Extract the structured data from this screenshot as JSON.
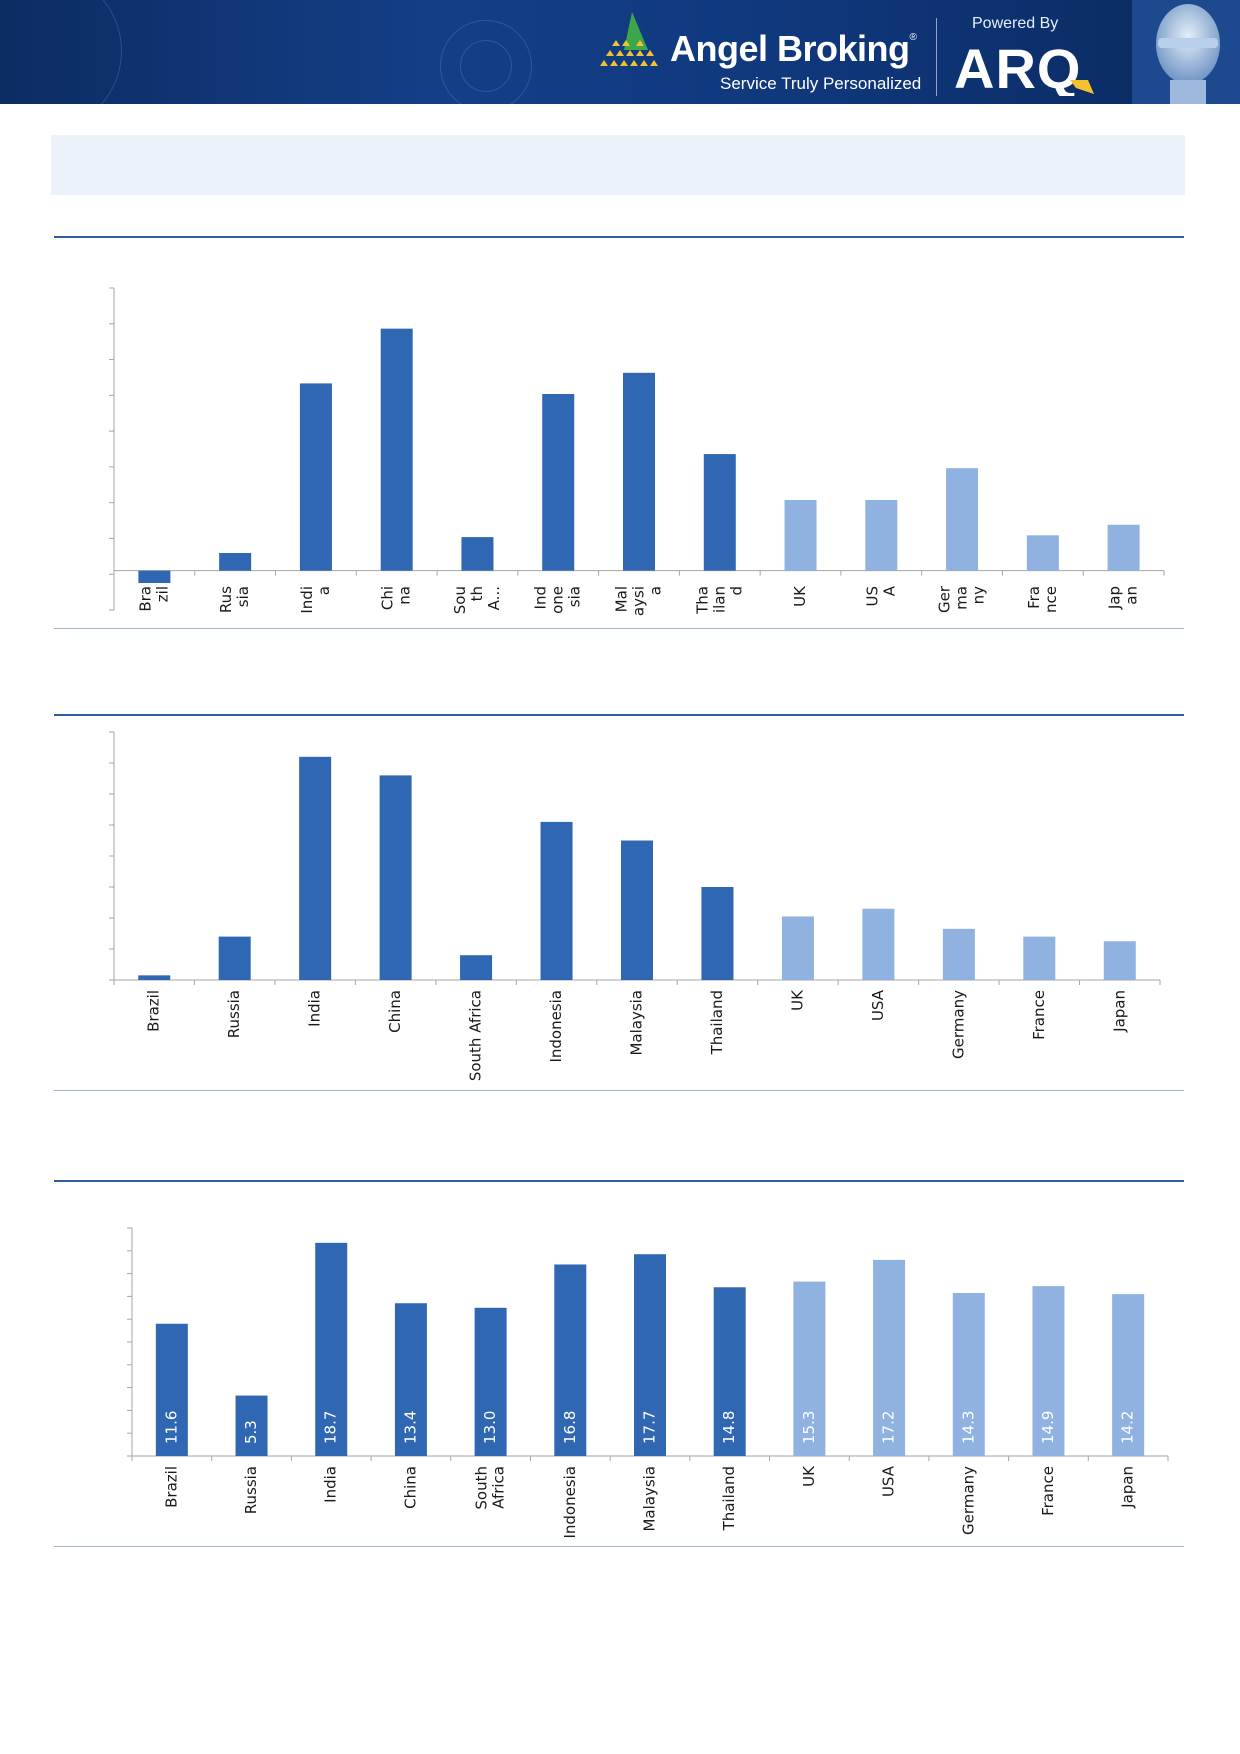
{
  "header": {
    "brand_name": "Angel Broking",
    "registered_mark": "®",
    "tagline": "Service Truly Personalized",
    "powered_by": "Powered By",
    "partner_logo_text": "ARQ",
    "icons": [
      "angel-triangle-logo-icon",
      "arq-logo-icon",
      "robot-head-icon"
    ]
  },
  "colors": {
    "header_bg": "#143f86",
    "emerging_markets": "#2f67b2",
    "developed_markets": "#8fb2e0",
    "rule": "#2f5d9e",
    "title_band": "#ebf2f9"
  },
  "chart_data": [
    {
      "type": "bar",
      "categories": [
        "Bra zil",
        "Rus sia",
        "Indi a",
        "Chi na",
        "Sou th A...",
        "Ind one sia",
        "Mal aysi a",
        "Tha ilan d",
        "UK",
        "US A",
        "Ger ma ny",
        "Fra nce",
        "Jap an"
      ],
      "tick_label_lines": [
        [
          "Bra",
          "zil"
        ],
        [
          "Rus",
          "sia"
        ],
        [
          "Indi",
          "a"
        ],
        [
          "Chi",
          "na"
        ],
        [
          "Sou",
          "th",
          "A..."
        ],
        [
          "Ind",
          "one",
          "sia"
        ],
        [
          "Mal",
          "aysi",
          "a"
        ],
        [
          "Tha",
          "ilan",
          "d"
        ],
        [
          "UK"
        ],
        [
          "US",
          "A"
        ],
        [
          "Ger",
          "ma",
          "ny"
        ],
        [
          "Fra",
          "nce"
        ],
        [
          "Jap",
          "an"
        ]
      ],
      "values": [
        -0.35,
        0.5,
        5.3,
        6.85,
        0.95,
        5.0,
        5.6,
        3.3,
        2.0,
        2.0,
        2.9,
        1.0,
        1.3
      ],
      "bar_colors": [
        "#2f67b2",
        "#2f67b2",
        "#2f67b2",
        "#2f67b2",
        "#2f67b2",
        "#2f67b2",
        "#2f67b2",
        "#2f67b2",
        "#8fb2e0",
        "#8fb2e0",
        "#8fb2e0",
        "#8fb2e0",
        "#8fb2e0"
      ],
      "ylim": [
        -1,
        8
      ],
      "title": "",
      "xlabel": "",
      "ylabel": "",
      "grid": false,
      "data_labels": false
    },
    {
      "type": "bar",
      "categories": [
        "Brazil",
        "Russia",
        "India",
        "China",
        "South Africa",
        "Indonesia",
        "Malaysia",
        "Thailand",
        "UK",
        "USA",
        "Germany",
        "France",
        "Japan"
      ],
      "values": [
        0.15,
        1.4,
        7.2,
        6.6,
        0.8,
        5.1,
        4.5,
        3.0,
        2.05,
        2.3,
        1.65,
        1.4,
        1.25
      ],
      "bar_colors": [
        "#2f67b2",
        "#2f67b2",
        "#2f67b2",
        "#2f67b2",
        "#2f67b2",
        "#2f67b2",
        "#2f67b2",
        "#2f67b2",
        "#8fb2e0",
        "#8fb2e0",
        "#8fb2e0",
        "#8fb2e0",
        "#8fb2e0"
      ],
      "ylim": [
        0,
        8
      ],
      "title": "",
      "xlabel": "",
      "ylabel": "",
      "grid": false,
      "data_labels": false
    },
    {
      "type": "bar",
      "categories": [
        "Brazil",
        "Russia",
        "India",
        "China",
        "South Africa",
        "Indonesia",
        "Malaysia",
        "Thailand",
        "UK",
        "USA",
        "Germany",
        "France",
        "Japan"
      ],
      "tick_label_lines": [
        [
          "Brazil"
        ],
        [
          "Russia"
        ],
        [
          "India"
        ],
        [
          "China"
        ],
        [
          "South",
          "Africa"
        ],
        [
          "Indonesia"
        ],
        [
          "Malaysia"
        ],
        [
          "Thailand"
        ],
        [
          "UK"
        ],
        [
          "USA"
        ],
        [
          "Germany"
        ],
        [
          "France"
        ],
        [
          "Japan"
        ]
      ],
      "values": [
        11.6,
        5.3,
        18.7,
        13.4,
        13.0,
        16.8,
        17.7,
        14.8,
        15.3,
        17.2,
        14.3,
        14.9,
        14.2
      ],
      "data_labels_text": [
        "11.6",
        "5.3",
        "18.7",
        "13.4",
        "13.0",
        "16.8",
        "17.7",
        "14.8",
        "15.3",
        "17.2",
        "14.3",
        "14.9",
        "14.2"
      ],
      "bar_colors": [
        "#2f67b2",
        "#2f67b2",
        "#2f67b2",
        "#2f67b2",
        "#2f67b2",
        "#2f67b2",
        "#2f67b2",
        "#2f67b2",
        "#8fb2e0",
        "#8fb2e0",
        "#8fb2e0",
        "#8fb2e0",
        "#8fb2e0"
      ],
      "ylim": [
        0,
        20
      ],
      "title": "",
      "xlabel": "",
      "ylabel": "",
      "grid": false,
      "data_labels": true
    }
  ]
}
